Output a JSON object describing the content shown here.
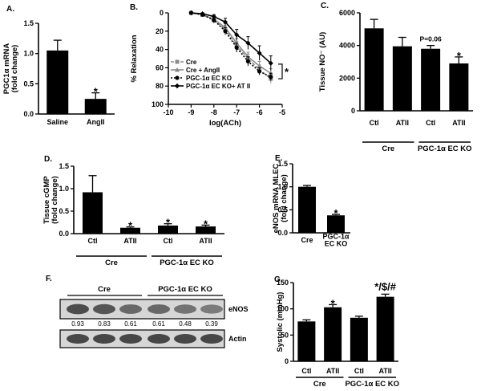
{
  "chart_data": [
    {
      "id": "A",
      "type": "bar",
      "panel_label": "A.",
      "ylabel": "PGC1α mRNA\n(fold change)",
      "ylim": [
        0,
        1.5
      ],
      "yticks": [
        "0.0",
        "0.5",
        "1.0",
        "1.5"
      ],
      "categories": [
        "Saline",
        "AngII"
      ],
      "values": [
        1.05,
        0.25
      ],
      "errors": [
        0.17,
        0.1
      ],
      "significance": [
        "",
        "*"
      ],
      "color": "#000000"
    },
    {
      "id": "B",
      "type": "line",
      "panel_label": "B.",
      "ylabel": "% Relaxation",
      "xlabel": "log(ACh)",
      "xlim": [
        -10,
        -5
      ],
      "ylim": [
        0,
        100
      ],
      "y_inverted": true,
      "xticks": [
        "-10",
        "-9",
        "-8",
        "-7",
        "-6",
        "-5"
      ],
      "yticks": [
        "0",
        "20",
        "40",
        "60",
        "80",
        "100"
      ],
      "x": [
        -9,
        -8.5,
        -8,
        -7.5,
        -7,
        -6.5,
        -6,
        -5.5
      ],
      "series": [
        {
          "name": "Cre",
          "color": "#8c8c8c",
          "dash": "4,2",
          "marker": "square",
          "values": [
            0,
            2,
            8,
            18,
            36,
            50,
            62,
            72
          ],
          "errors": [
            1,
            2,
            3,
            4,
            5,
            5,
            5,
            5
          ]
        },
        {
          "name": "Cre + AngII",
          "color": "#8c8c8c",
          "dash": "",
          "marker": "triangle",
          "values": [
            0,
            2,
            7,
            16,
            33,
            48,
            58,
            66
          ],
          "errors": [
            1,
            2,
            3,
            4,
            5,
            5,
            5,
            5
          ]
        },
        {
          "name": "PGC-1α EC KO",
          "color": "#000000",
          "dash": "2,2",
          "marker": "circle",
          "values": [
            0,
            2,
            8,
            20,
            38,
            53,
            64,
            70
          ],
          "errors": [
            1,
            2,
            3,
            4,
            5,
            5,
            4,
            4
          ]
        },
        {
          "name": "PGC-1α EC KO+ AT II",
          "color": "#000000",
          "dash": "",
          "marker": "diamond",
          "values": [
            0,
            1,
            4,
            10,
            24,
            33,
            44,
            55
          ],
          "errors": [
            1,
            1,
            2,
            4,
            6,
            7,
            8,
            8
          ]
        }
      ],
      "significance": "*"
    },
    {
      "id": "C",
      "type": "bar",
      "panel_label": "C.",
      "ylabel": "Tissue NO⁻ (AU)",
      "ylim": [
        0,
        6000
      ],
      "yticks": [
        "0",
        "2000",
        "4000",
        "6000"
      ],
      "categories": [
        "Ctl",
        "ATII",
        "Ctl",
        "ATII"
      ],
      "groups": [
        {
          "label": "Cre",
          "span": [
            0,
            1
          ]
        },
        {
          "label": "PGC-1α EC KO",
          "span": [
            2,
            3
          ]
        }
      ],
      "values": [
        5050,
        3950,
        3800,
        2900
      ],
      "errors": [
        550,
        550,
        200,
        400
      ],
      "significance": [
        "",
        "",
        "P=0.06",
        "*"
      ],
      "color": "#000000"
    },
    {
      "id": "D",
      "type": "bar",
      "panel_label": "D.",
      "ylabel": "Tissue cGMP\n(fold change)",
      "ylim": [
        0,
        1.5
      ],
      "yticks": [
        "0.0",
        "0.5",
        "1.0",
        "1.5"
      ],
      "categories": [
        "Ctl",
        "ATII",
        "Ctl",
        "ATII"
      ],
      "groups": [
        {
          "label": "Cre",
          "span": [
            0,
            1
          ]
        },
        {
          "label": "PGC-1α EC KO",
          "span": [
            2,
            3
          ]
        }
      ],
      "values": [
        0.92,
        0.13,
        0.18,
        0.16
      ],
      "errors": [
        0.37,
        0.02,
        0.04,
        0.03
      ],
      "significance": [
        "",
        "*",
        "*",
        "*"
      ],
      "color": "#000000"
    },
    {
      "id": "E",
      "type": "bar",
      "panel_label": "E.",
      "ylabel": "eNOS mRNA MLEC\n(fold change)",
      "ylim": [
        0,
        1.5
      ],
      "yticks": [
        "0.0",
        "0.5",
        "1.0",
        "1.5"
      ],
      "categories": [
        "Cre",
        "PGC-1α\nEC KO"
      ],
      "values": [
        1.0,
        0.38
      ],
      "errors": [
        0.03,
        0.02
      ],
      "significance": [
        "",
        "*"
      ],
      "color": "#000000"
    },
    {
      "id": "G",
      "type": "bar",
      "panel_label": "G.",
      "ylabel": "Systolic (mmHg)",
      "ylim": [
        0,
        150
      ],
      "yticks": [
        "0",
        "50",
        "100",
        "150"
      ],
      "categories": [
        "Ctl",
        "ATII",
        "Ctl",
        "ATII"
      ],
      "groups": [
        {
          "label": "Cre",
          "span": [
            0,
            1
          ]
        },
        {
          "label": "PGC-1α EC KO",
          "span": [
            2,
            3
          ]
        }
      ],
      "values": [
        76,
        103,
        83,
        123
      ],
      "errors": [
        3,
        5,
        3,
        5
      ],
      "significance": [
        "",
        "*",
        "",
        "*/$/#"
      ],
      "color": "#000000"
    }
  ],
  "blot": {
    "panel_label": "F.",
    "groups": [
      {
        "label": "Cre",
        "lanes": 3
      },
      {
        "label": "PGC-1α EC KO",
        "lanes": 3
      }
    ],
    "rows": [
      {
        "label": "eNOS",
        "intensity": [
          0.93,
          0.83,
          0.61,
          0.61,
          0.48,
          0.39
        ]
      },
      {
        "label": "Actin",
        "intensity": [
          1,
          1,
          1,
          1,
          1,
          1
        ]
      }
    ],
    "quantification": [
      "0.93",
      "0.83",
      "0.61",
      "0.61",
      "0.48",
      "0.39"
    ]
  }
}
